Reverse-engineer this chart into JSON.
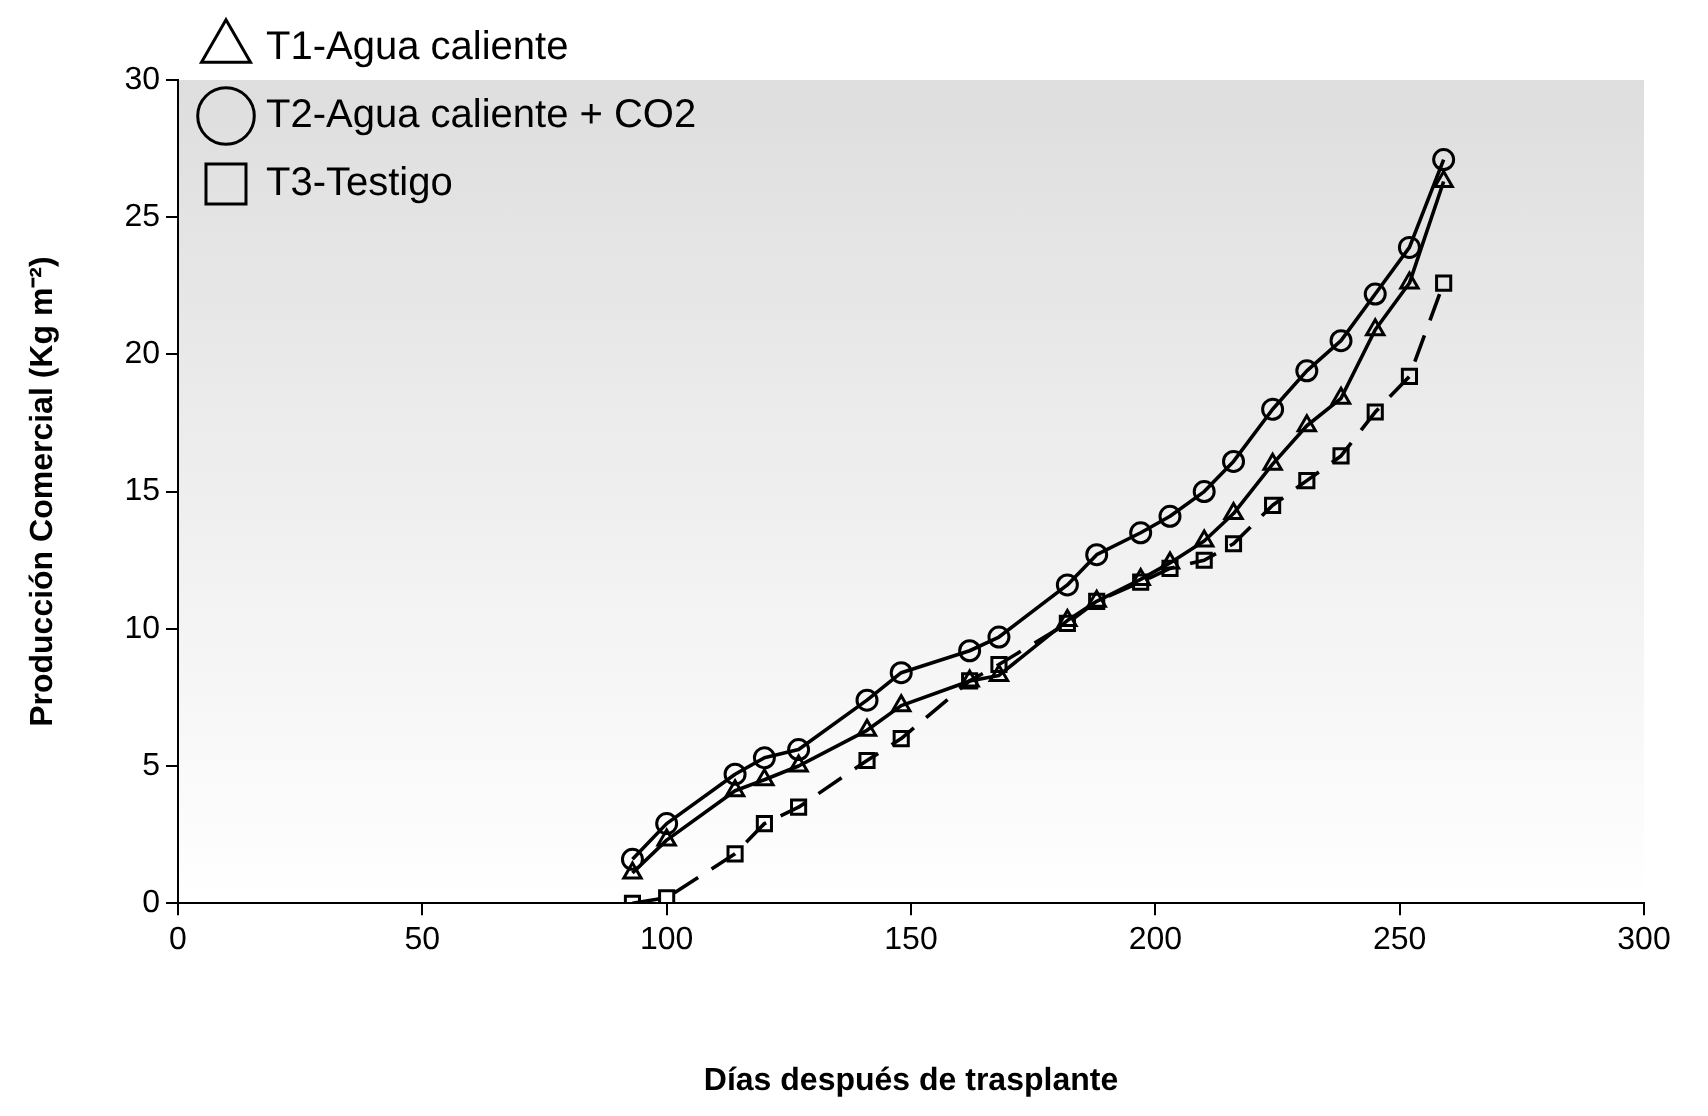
{
  "chart_data": {
    "type": "line",
    "xlabel": "Días después de trasplante",
    "ylabel": "Producción Comercial (Kg m⁻²)",
    "x": [
      93,
      100,
      114,
      120,
      127,
      141,
      148,
      162,
      168,
      182,
      188,
      197,
      203,
      210,
      216,
      224,
      231,
      238,
      245,
      252,
      259
    ],
    "series": [
      {
        "name": "T1-Agua caliente",
        "color": "#000000",
        "marker": "triangle",
        "line_style": "solid",
        "values": [
          1.1,
          2.3,
          4.1,
          4.5,
          5.0,
          6.3,
          7.2,
          8.1,
          8.3,
          10.3,
          11.0,
          11.8,
          12.4,
          13.2,
          14.2,
          16.0,
          17.4,
          18.4,
          20.9,
          22.6,
          26.3
        ]
      },
      {
        "name": "T2-Agua caliente + CO2",
        "color": "#000000",
        "marker": "circle",
        "line_style": "solid",
        "values": [
          1.6,
          2.9,
          4.7,
          5.3,
          5.6,
          7.4,
          8.4,
          9.2,
          9.7,
          11.6,
          12.7,
          13.5,
          14.1,
          15.0,
          16.1,
          18.0,
          19.4,
          20.5,
          22.2,
          23.9,
          27.1
        ]
      },
      {
        "name": "T3-Testigo",
        "color": "#000000",
        "marker": "square",
        "line_style": "dashed",
        "values": [
          0.0,
          0.2,
          1.8,
          2.9,
          3.5,
          5.2,
          6.0,
          8.1,
          8.7,
          10.2,
          11.0,
          11.7,
          12.2,
          12.5,
          13.1,
          14.5,
          15.4,
          16.3,
          17.9,
          19.2,
          22.6
        ]
      }
    ],
    "xlim": [
      0,
      300
    ],
    "xticks": [
      0,
      50,
      100,
      150,
      200,
      250,
      300
    ],
    "ylim": [
      0,
      30
    ],
    "yticks": [
      0,
      5,
      10,
      15,
      20,
      25,
      30
    ],
    "grid": false,
    "legend": "top left"
  }
}
